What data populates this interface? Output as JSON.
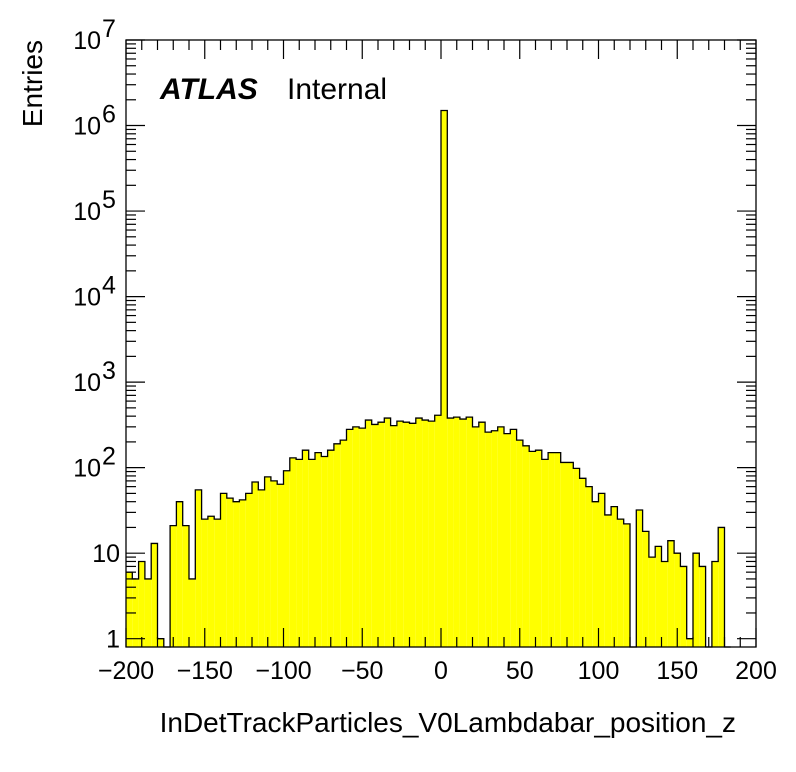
{
  "chart_data": {
    "type": "bar",
    "style": "histogram",
    "xlabel": "InDetTrackParticles_V0Lambdabar_position_z",
    "ylabel": "Entries",
    "xlim": [
      -200,
      200
    ],
    "ylim": [
      0.8,
      10000000
    ],
    "y_scale": "log",
    "bin_width": 4,
    "fill_color": "#ffff00",
    "line_color": "#000000",
    "x_tick_labels": [
      "−200",
      "−150",
      "−100",
      "−50",
      "0",
      "50",
      "100",
      "150",
      "200"
    ],
    "x_ticks": [
      -200,
      -150,
      -100,
      -50,
      0,
      50,
      100,
      150,
      200
    ],
    "y_ticks": [
      1,
      10,
      100,
      1000,
      10000,
      100000,
      1000000,
      10000000
    ],
    "y_tick_labels": [
      {
        "base": "1",
        "exp": ""
      },
      {
        "base": "10",
        "exp": ""
      },
      {
        "base": "10",
        "exp": "2"
      },
      {
        "base": "10",
        "exp": "3"
      },
      {
        "base": "10",
        "exp": "4"
      },
      {
        "base": "10",
        "exp": "5"
      },
      {
        "base": "10",
        "exp": "6"
      },
      {
        "base": "10",
        "exp": "7"
      }
    ],
    "annotation": {
      "experiment": "ATLAS",
      "status": "Internal"
    },
    "bin_edges_start": -200,
    "values": [
      6,
      5,
      8,
      5,
      13,
      1,
      0,
      21,
      40,
      21,
      5,
      55,
      25,
      27,
      25,
      50,
      44,
      40,
      42,
      50,
      68,
      55,
      78,
      70,
      64,
      92,
      130,
      125,
      160,
      125,
      150,
      135,
      160,
      190,
      210,
      280,
      300,
      290,
      360,
      320,
      340,
      380,
      310,
      350,
      340,
      330,
      380,
      360,
      350,
      410,
      1500000,
      380,
      390,
      370,
      390,
      300,
      340,
      260,
      270,
      300,
      250,
      280,
      210,
      180,
      155,
      160,
      125,
      150,
      150,
      115,
      115,
      98,
      75,
      60,
      40,
      50,
      28,
      35,
      25,
      22,
      0,
      32,
      18,
      9,
      12,
      8,
      14,
      10,
      7,
      1,
      10,
      7,
      0,
      8,
      20,
      0
    ]
  }
}
